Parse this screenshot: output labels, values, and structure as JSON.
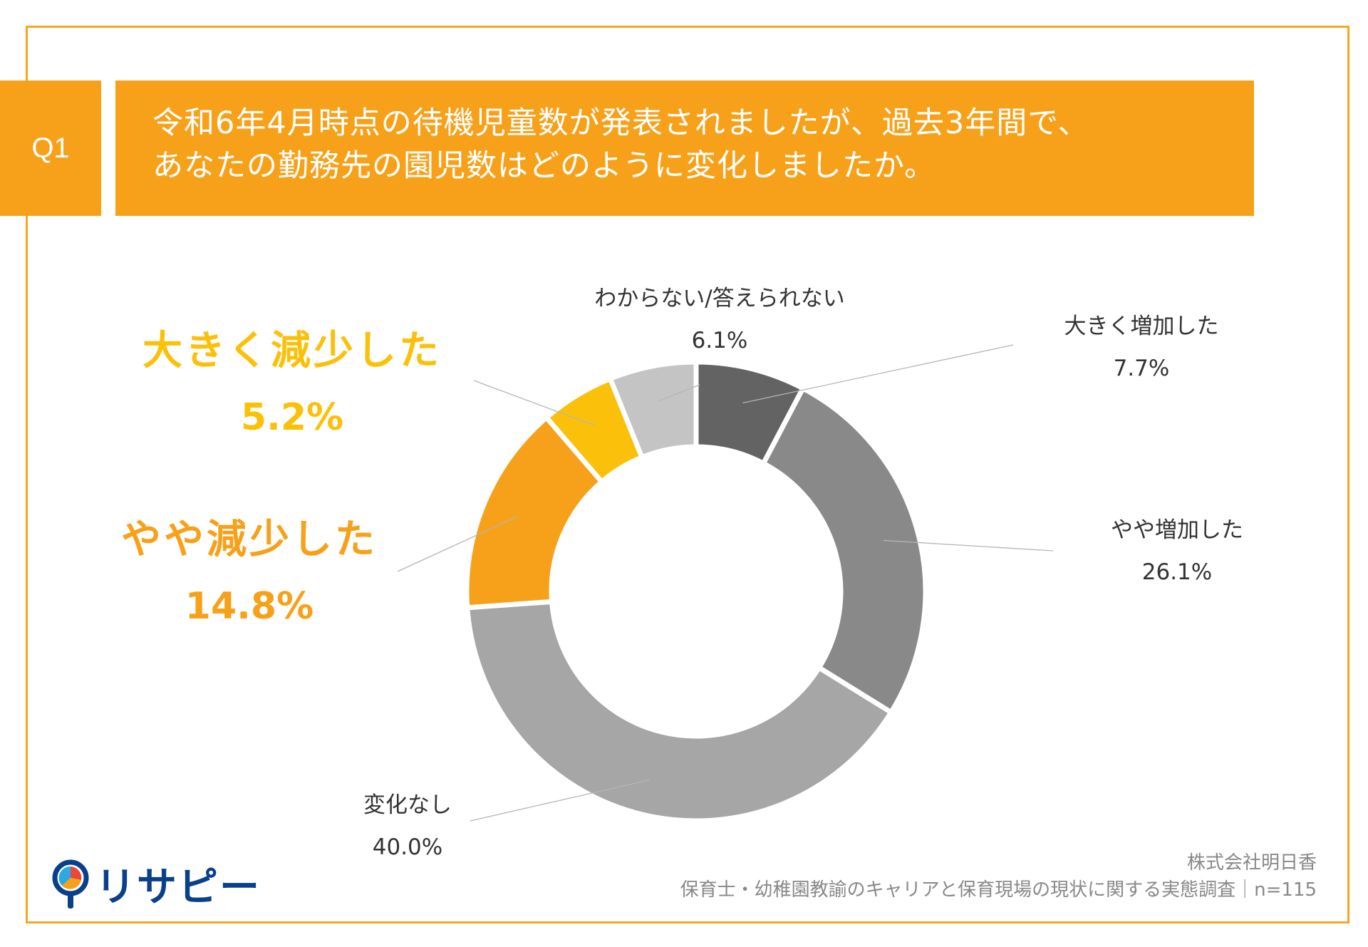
{
  "question": {
    "badge": "Q1",
    "line1": "令和6年4月時点の待機児童数が発表されましたが、過去3年間で、",
    "line2": "あなたの勤務先の園児数はどのように変化しましたか。"
  },
  "chart_data": {
    "type": "pie",
    "donut": true,
    "start": "top",
    "direction": "clockwise",
    "categories": [
      "大きく増加した",
      "やや増加した",
      "変化なし",
      "やや減少した",
      "大きく減少した",
      "わからない/答えられない"
    ],
    "values": [
      7.7,
      26.1,
      40.0,
      14.8,
      5.2,
      6.1
    ],
    "value_labels": [
      "7.7%",
      "26.1%",
      "40.0%",
      "14.8%",
      "5.2%",
      "6.1%"
    ],
    "colors": [
      "#636363",
      "#898989",
      "#A6A6A6",
      "#F7A11A",
      "#FBC10A",
      "#C4C4C4"
    ],
    "label_colors": [
      "#333333",
      "#333333",
      "#333333",
      "#F7A11A",
      "#FBC10A",
      "#333333"
    ]
  },
  "footer": {
    "company": "株式会社明日香",
    "survey": "保育士・幼稚園教諭のキャリアと保育現場の現状に関する実態調査｜n=115"
  },
  "logo": {
    "text": "リサピー"
  },
  "colors": {
    "accent": "#F7A11A",
    "frame": "#F4A623",
    "logo_blue": "#0A3F8A"
  }
}
